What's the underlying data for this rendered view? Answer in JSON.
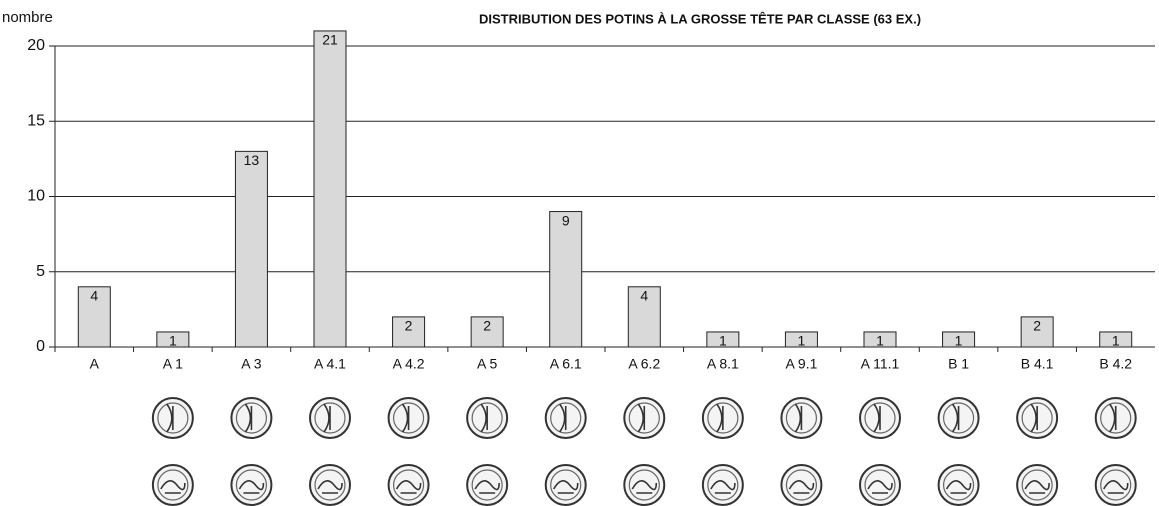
{
  "chart_data": {
    "type": "bar",
    "title": "DISTRIBUTION DES POTINS À LA GROSSE TÊTE PAR CLASSE (63 EX.)",
    "y_label": "nombre",
    "categories": [
      "A",
      "A 1",
      "A 3",
      "A 4.1",
      "A 4.2",
      "A 5",
      "A 6.1",
      "A 6.2",
      "A 8.1",
      "A 9.1",
      "A 11.1",
      "B 1",
      "B 4.1",
      "B 4.2"
    ],
    "values": [
      4,
      1,
      13,
      21,
      2,
      2,
      9,
      4,
      1,
      1,
      1,
      1,
      2,
      1
    ],
    "color": "#d9d9d9",
    "ylim": [
      0,
      20
    ],
    "yticks": [
      0,
      5,
      10,
      15,
      20
    ],
    "grid": true
  }
}
